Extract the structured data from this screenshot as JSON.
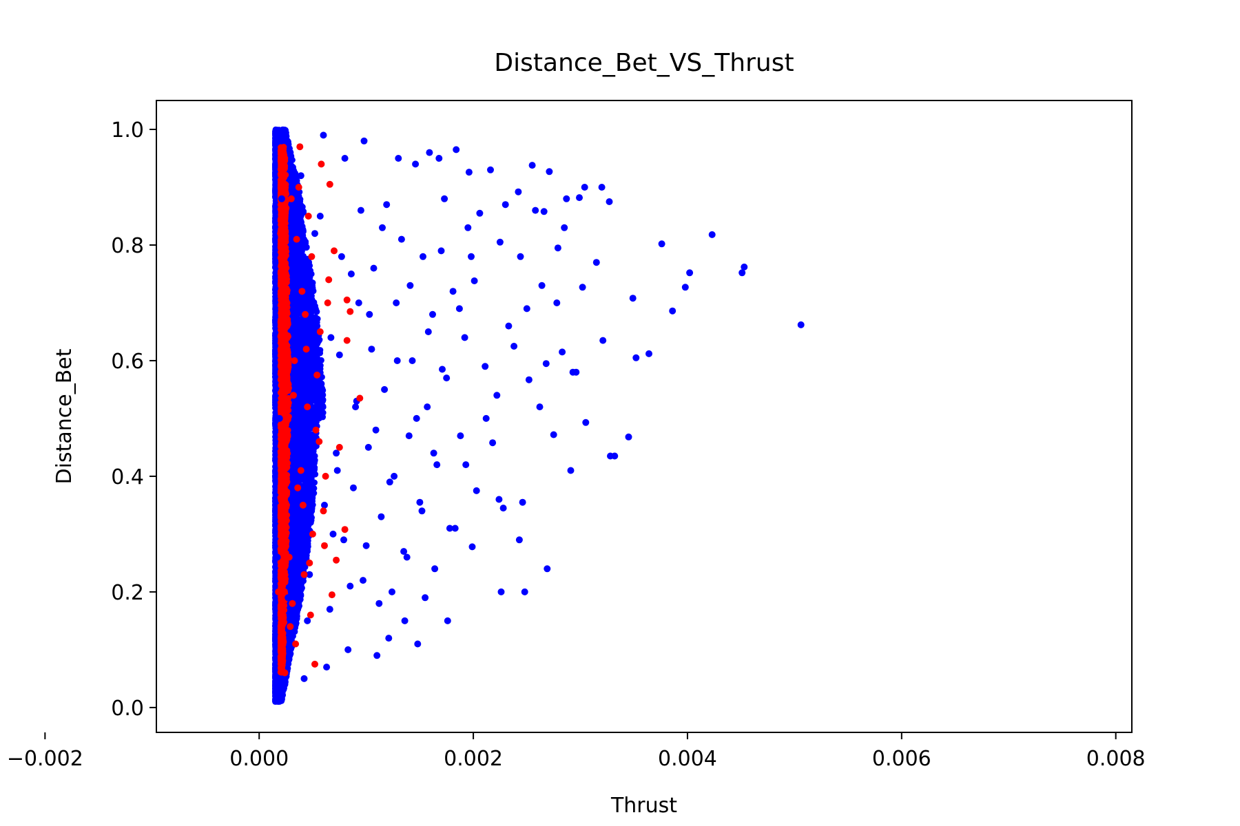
{
  "chart_data": {
    "type": "scatter",
    "title": "Distance_Bet_VS_Thrust",
    "xlabel": "Thrust",
    "ylabel": "Distance_Bet",
    "xlim": [
      -0.00096,
      0.00815
    ],
    "ylim": [
      -0.043,
      1.05
    ],
    "x_ticks": [
      {
        "value": -0.002,
        "label": "−0.002"
      },
      {
        "value": 0.0,
        "label": "0.000"
      },
      {
        "value": 0.002,
        "label": "0.002"
      },
      {
        "value": 0.004,
        "label": "0.004"
      },
      {
        "value": 0.006,
        "label": "0.006"
      },
      {
        "value": 0.008,
        "label": "0.008"
      }
    ],
    "y_ticks": [
      {
        "value": 0.0,
        "label": "0.0"
      },
      {
        "value": 0.2,
        "label": "0.2"
      },
      {
        "value": 0.4,
        "label": "0.4"
      },
      {
        "value": 0.6,
        "label": "0.6"
      },
      {
        "value": 0.8,
        "label": "0.8"
      },
      {
        "value": 1.0,
        "label": "1.0"
      }
    ],
    "grid": false,
    "series": [
      {
        "color": "#0000ff",
        "x": [
          0.00506,
          0.00453,
          0.00451,
          0.00423,
          0.00376,
          0.00402,
          0.00398,
          0.00386,
          0.00364,
          0.00352,
          0.00349,
          0.00345,
          0.00332,
          0.00328,
          0.00321,
          0.0032,
          0.00327,
          0.00305,
          0.00302,
          0.00296,
          0.00299,
          0.00291,
          0.00287,
          0.00283,
          0.00279,
          0.00275,
          0.00271,
          0.00268,
          0.00266,
          0.00264,
          0.00255,
          0.00252,
          0.0025,
          0.00248,
          0.00246,
          0.00244,
          0.00242,
          0.00238,
          0.0023,
          0.00228,
          0.00226,
          0.00225,
          0.00222,
          0.00218,
          0.00216,
          0.00211,
          0.00206,
          0.00203,
          0.00201,
          0.00199,
          0.00196,
          0.00195,
          0.00192,
          0.00188,
          0.00184,
          0.00181,
          0.00178,
          0.00176,
          0.00173,
          0.00171,
          0.00168,
          0.00166,
          0.00164,
          0.00162,
          0.00159,
          0.00157,
          0.00155,
          0.00153,
          0.0015,
          0.00148,
          0.00146,
          0.00143,
          0.0014,
          0.00138,
          0.00136,
          0.00133,
          0.0013,
          0.00128,
          0.00126,
          0.00124,
          0.00121,
          0.00119,
          0.00117,
          0.00114,
          0.00112,
          0.0011,
          0.00107,
          0.00105,
          0.00102,
          0.001,
          0.00098,
          0.00095,
          0.00093,
          0.0009,
          0.00088,
          0.00085,
          0.00083,
          0.0008,
          0.00077,
          0.00075,
          0.00072,
          0.00069,
          0.00066,
          0.00063,
          0.0006,
          0.00057,
          0.00054,
          0.00051,
          0.00048,
          0.00045,
          0.00042,
          0.00039,
          0.00036,
          0.00033,
          0.0003,
          0.00027,
          0.00024,
          0.00021,
          0.00019,
          0.00017,
          0.00029,
          0.00034,
          0.00041,
          0.00047,
          0.00052,
          0.00058,
          0.00061,
          0.00067,
          0.00073,
          0.00079,
          0.00086,
          0.00091,
          0.00097,
          0.00103,
          0.00109,
          0.00115,
          0.00122,
          0.00129,
          0.00135,
          0.00141,
          0.00147,
          0.00152,
          0.00158,
          0.00163,
          0.0017,
          0.00175,
          0.00183,
          0.00187,
          0.00193,
          0.00198,
          0.00212,
          0.00224,
          0.00233,
          0.00243,
          0.00258,
          0.00262,
          0.00269,
          0.00278,
          0.00285,
          0.00293,
          0.00304,
          0.00315
        ],
        "y": [
          0.662,
          0.762,
          0.752,
          0.818,
          0.802,
          0.752,
          0.727,
          0.686,
          0.612,
          0.605,
          0.708,
          0.468,
          0.435,
          0.435,
          0.635,
          0.9,
          0.875,
          0.493,
          0.727,
          0.58,
          0.882,
          0.41,
          0.88,
          0.615,
          0.795,
          0.472,
          0.927,
          0.595,
          0.858,
          0.73,
          0.938,
          0.567,
          0.69,
          0.2,
          0.355,
          0.78,
          0.892,
          0.625,
          0.87,
          0.345,
          0.2,
          0.805,
          0.54,
          0.458,
          0.93,
          0.59,
          0.855,
          0.375,
          0.738,
          0.278,
          0.926,
          0.83,
          0.64,
          0.47,
          0.965,
          0.72,
          0.31,
          0.15,
          0.88,
          0.585,
          0.95,
          0.42,
          0.24,
          0.68,
          0.96,
          0.52,
          0.19,
          0.78,
          0.355,
          0.11,
          0.94,
          0.6,
          0.47,
          0.26,
          0.15,
          0.81,
          0.95,
          0.7,
          0.4,
          0.2,
          0.12,
          0.87,
          0.55,
          0.33,
          0.18,
          0.09,
          0.76,
          0.62,
          0.45,
          0.28,
          0.98,
          0.86,
          0.7,
          0.52,
          0.38,
          0.21,
          0.1,
          0.95,
          0.78,
          0.61,
          0.44,
          0.3,
          0.17,
          0.07,
          0.99,
          0.85,
          0.66,
          0.49,
          0.32,
          0.15,
          0.05,
          0.92,
          0.72,
          0.54,
          0.36,
          0.19,
          0.04,
          0.88,
          0.5,
          0.26,
          0.96,
          0.43,
          0.68,
          0.23,
          0.82,
          0.56,
          0.35,
          0.64,
          0.41,
          0.29,
          0.75,
          0.53,
          0.22,
          0.68,
          0.48,
          0.83,
          0.39,
          0.6,
          0.27,
          0.73,
          0.5,
          0.34,
          0.65,
          0.44,
          0.79,
          0.57,
          0.31,
          0.69,
          0.42,
          0.78,
          0.5,
          0.36,
          0.66,
          0.29,
          0.86,
          0.52,
          0.24,
          0.7,
          0.83,
          0.58,
          0.9,
          0.77
        ]
      },
      {
        "color": "#ff0000",
        "x": [
          0.00094,
          0.00085,
          0.00082,
          0.00082,
          0.0008,
          0.00075,
          0.00072,
          0.0007,
          0.00068,
          0.00066,
          0.00064,
          0.00062,
          0.0006,
          0.00058,
          0.00056,
          0.00054,
          0.00052,
          0.0005,
          0.00048,
          0.00046,
          0.00044,
          0.00042,
          0.0004,
          0.00038,
          0.00036,
          0.00034,
          0.00032,
          0.0003,
          0.00028,
          0.00026,
          0.00024,
          0.00022,
          0.0002,
          0.00018,
          0.00049,
          0.00045,
          0.00041,
          0.00037,
          0.00033,
          0.00029,
          0.00025,
          0.00021,
          0.00047,
          0.00043,
          0.00039,
          0.00035,
          0.00031,
          0.00027,
          0.00023,
          0.00053,
          0.00057,
          0.00061,
          0.00065
        ],
        "y": [
          0.535,
          0.685,
          0.705,
          0.635,
          0.308,
          0.45,
          0.255,
          0.79,
          0.195,
          0.905,
          0.7,
          0.4,
          0.34,
          0.94,
          0.46,
          0.575,
          0.075,
          0.3,
          0.16,
          0.85,
          0.62,
          0.23,
          0.72,
          0.97,
          0.38,
          0.11,
          0.54,
          0.88,
          0.26,
          0.66,
          0.06,
          0.43,
          0.82,
          0.2,
          0.78,
          0.52,
          0.35,
          0.9,
          0.6,
          0.14,
          0.47,
          0.74,
          0.25,
          0.68,
          0.41,
          0.81,
          0.18,
          0.56,
          0.31,
          0.48,
          0.65,
          0.28,
          0.74
        ]
      }
    ],
    "clouds": [
      {
        "color": "#0000ff",
        "count": 9000,
        "xmin": 0.00015,
        "spread": 0.00045,
        "spread_top": 0.00012,
        "spread_bottom": 6e-05,
        "ymin": 0.01,
        "ymax": 1.0
      },
      {
        "color": "#ff0000",
        "count": 1500,
        "xmin": 0.0002,
        "spread": 8e-05,
        "spread_top": 6e-05,
        "spread_bottom": 2e-05,
        "ymin": 0.06,
        "ymax": 0.97
      }
    ]
  }
}
